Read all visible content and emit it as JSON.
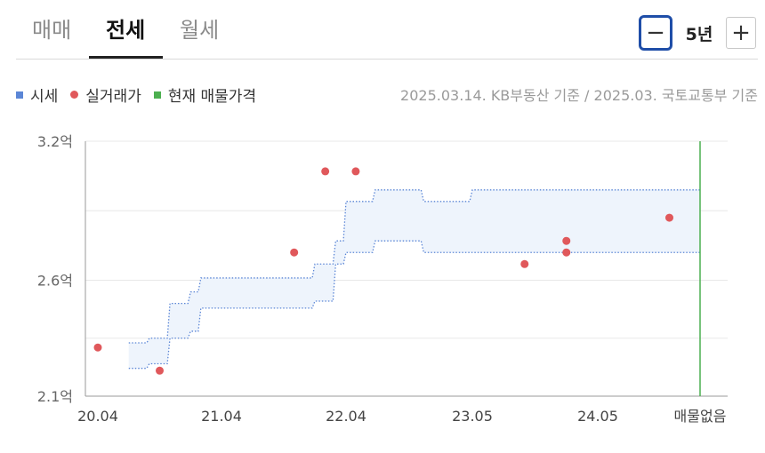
{
  "tabs": [
    {
      "label": "매매",
      "active": false
    },
    {
      "label": "전세",
      "active": true
    },
    {
      "label": "월세",
      "active": false
    }
  ],
  "period": {
    "minus_icon": "minus-icon",
    "plus_icon": "plus-icon",
    "label": "5년"
  },
  "legend": {
    "market_price": "시세",
    "transactions": "실거래가",
    "current_listing": "현재 매물가격"
  },
  "source_note": "2025.03.14. KB부동산 기준 / 2025.03. 국토교통부 기준",
  "colors": {
    "band_line": "#5b86d6",
    "band_fill": "#eef4fc",
    "dot": "#e0585b",
    "listing_line": "#4caf50",
    "tab_active": "#111111",
    "period_border": "#1f4ea8"
  },
  "chart_data": {
    "type": "scatter",
    "x_unit": "date (YY.MM)",
    "y_unit": "억 (100M KRW)",
    "ylim": [
      2.1,
      3.2
    ],
    "y_ticks": [
      {
        "value": 3.2,
        "label": "3.2억"
      },
      {
        "value": 2.6,
        "label": "2.6억"
      },
      {
        "value": 2.1,
        "label": "2.1억"
      }
    ],
    "y_gridlines": [
      3.2,
      2.9,
      2.6,
      2.35,
      2.1
    ],
    "xlim": [
      "2020-04",
      "2025-03"
    ],
    "x_ticks": [
      {
        "date": "2020-04",
        "label": "20.04"
      },
      {
        "date": "2021-04",
        "label": "21.04"
      },
      {
        "date": "2022-04",
        "label": "22.04"
      },
      {
        "date": "2023-05",
        "label": "23.05"
      },
      {
        "date": "2024-05",
        "label": "24.05"
      },
      {
        "date": "2025-03",
        "label": "매물없음"
      }
    ],
    "series": [
      {
        "name": "시세",
        "kind": "band",
        "points": [
          {
            "date": "2020-07",
            "upper": 2.33,
            "lower": 2.22
          },
          {
            "date": "2020-09",
            "upper": 2.35,
            "lower": 2.24
          },
          {
            "date": "2020-11",
            "upper": 2.5,
            "lower": 2.35
          },
          {
            "date": "2021-01",
            "upper": 2.55,
            "lower": 2.38
          },
          {
            "date": "2021-02",
            "upper": 2.61,
            "lower": 2.48
          },
          {
            "date": "2021-08",
            "upper": 2.61,
            "lower": 2.48
          },
          {
            "date": "2022-01",
            "upper": 2.67,
            "lower": 2.51
          },
          {
            "date": "2022-03",
            "upper": 2.77,
            "lower": 2.67
          },
          {
            "date": "2022-04",
            "upper": 2.94,
            "lower": 2.72
          },
          {
            "date": "2022-07",
            "upper": 2.99,
            "lower": 2.77
          },
          {
            "date": "2022-12",
            "upper": 2.94,
            "lower": 2.72
          },
          {
            "date": "2023-05",
            "upper": 2.99,
            "lower": 2.72
          },
          {
            "date": "2025-03",
            "upper": 2.99,
            "lower": 2.72
          }
        ]
      },
      {
        "name": "실거래가",
        "kind": "dots",
        "points": [
          {
            "date": "2020-04",
            "value": 2.31
          },
          {
            "date": "2020-10",
            "value": 2.21
          },
          {
            "date": "2021-11",
            "value": 2.72
          },
          {
            "date": "2022-02",
            "value": 3.07
          },
          {
            "date": "2022-05",
            "value": 3.07
          },
          {
            "date": "2023-10",
            "value": 2.67
          },
          {
            "date": "2024-02",
            "value": 2.77
          },
          {
            "date": "2024-02",
            "value": 2.72
          },
          {
            "date": "2024-12",
            "value": 2.87
          }
        ]
      },
      {
        "name": "현재 매물가격",
        "kind": "vertical-line",
        "date": "2025-03",
        "value_label": "매물없음"
      }
    ]
  }
}
